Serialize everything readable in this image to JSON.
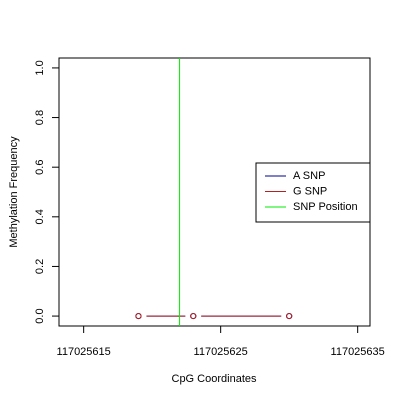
{
  "chart_data": {
    "type": "line",
    "x_label": "CpG Coordinates",
    "y_label": "Methylation Frequency",
    "x": [
      117025619,
      117025623,
      117025630
    ],
    "series": [
      {
        "name": "A SNP",
        "color": "#00008b",
        "values": [
          0,
          0,
          0
        ]
      },
      {
        "name": "G SNP",
        "color": "#b22222",
        "values": [
          0,
          0,
          0
        ]
      }
    ],
    "snp_position": {
      "name": "SNP Position",
      "color": "#00ee00",
      "x": 117025622
    },
    "xlim": [
      117025613.2,
      117025635.9
    ],
    "ylim": [
      -0.04,
      1.04
    ],
    "xticks": [
      117025615,
      117025625,
      117025635
    ],
    "yticks": [
      {
        "value": 0,
        "label": "0.0"
      },
      {
        "value": 0.2,
        "label": "0.2"
      },
      {
        "value": 0.4,
        "label": "0.4"
      },
      {
        "value": 0.6,
        "label": "0.6"
      },
      {
        "value": 0.8,
        "label": "0.8"
      },
      {
        "value": 1,
        "label": "1.0"
      }
    ],
    "legend": "right"
  }
}
